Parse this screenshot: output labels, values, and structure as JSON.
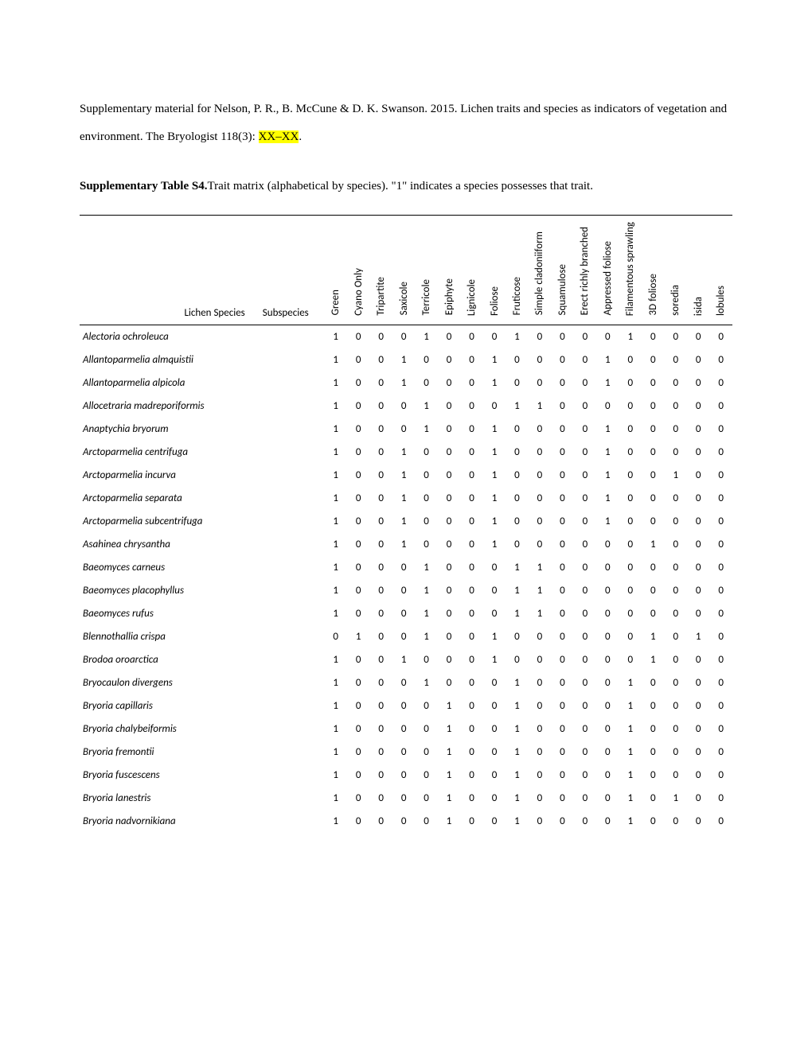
{
  "citation_pre": "Supplementary material for Nelson, P. R., B. McCune & D. K. Swanson. 2015. Lichen traits and species as indicators of vegetation and environment. The Bryologist 118(3): ",
  "citation_highlight": "XX–XX",
  "citation_post": ".",
  "caption_bold": "Supplementary Table S4.",
  "caption_rest": "Trait matrix (alphabetical by species). \"1\" indicates a species possesses that trait.",
  "table": {
    "species_header": "Lichen Species",
    "subspecies_header": "Subspecies",
    "trait_columns": [
      "Green",
      "Cyano Only",
      "Tripartite",
      "Saxicole",
      "Terricole",
      "Epiphyte",
      "Lignicole",
      "Foliose",
      "Fruticose",
      "Simple cladoniiform",
      "Squamulose",
      "Erect richly branched",
      "Appressed foliose",
      "Filamentous sprawling",
      "3D foliose",
      "soredia",
      "isida",
      "lobules"
    ],
    "rows": [
      {
        "species": "Alectoria ochroleuca",
        "sub": "",
        "v": [
          1,
          0,
          0,
          0,
          1,
          0,
          0,
          0,
          1,
          0,
          0,
          0,
          0,
          1,
          0,
          0,
          0,
          0
        ]
      },
      {
        "species": "Allantoparmelia almquistii",
        "sub": "",
        "v": [
          1,
          0,
          0,
          1,
          0,
          0,
          0,
          1,
          0,
          0,
          0,
          0,
          1,
          0,
          0,
          0,
          0,
          0
        ]
      },
      {
        "species": "Allantoparmelia alpicola",
        "sub": "",
        "v": [
          1,
          0,
          0,
          1,
          0,
          0,
          0,
          1,
          0,
          0,
          0,
          0,
          1,
          0,
          0,
          0,
          0,
          0
        ]
      },
      {
        "species": "Allocetraria madreporiformis",
        "sub": "",
        "v": [
          1,
          0,
          0,
          0,
          1,
          0,
          0,
          0,
          1,
          1,
          0,
          0,
          0,
          0,
          0,
          0,
          0,
          0
        ]
      },
      {
        "species": "Anaptychia bryorum",
        "sub": "",
        "v": [
          1,
          0,
          0,
          0,
          1,
          0,
          0,
          1,
          0,
          0,
          0,
          0,
          1,
          0,
          0,
          0,
          0,
          0
        ]
      },
      {
        "species": "Arctoparmelia centrifuga",
        "sub": "",
        "v": [
          1,
          0,
          0,
          1,
          0,
          0,
          0,
          1,
          0,
          0,
          0,
          0,
          1,
          0,
          0,
          0,
          0,
          0
        ]
      },
      {
        "species": "Arctoparmelia incurva",
        "sub": "",
        "v": [
          1,
          0,
          0,
          1,
          0,
          0,
          0,
          1,
          0,
          0,
          0,
          0,
          1,
          0,
          0,
          1,
          0,
          0
        ]
      },
      {
        "species": "Arctoparmelia separata",
        "sub": "",
        "v": [
          1,
          0,
          0,
          1,
          0,
          0,
          0,
          1,
          0,
          0,
          0,
          0,
          1,
          0,
          0,
          0,
          0,
          0
        ]
      },
      {
        "species": "Arctoparmelia subcentrifuga",
        "sub": "",
        "v": [
          1,
          0,
          0,
          1,
          0,
          0,
          0,
          1,
          0,
          0,
          0,
          0,
          1,
          0,
          0,
          0,
          0,
          0
        ]
      },
      {
        "species": "Asahinea chrysantha",
        "sub": "",
        "v": [
          1,
          0,
          0,
          1,
          0,
          0,
          0,
          1,
          0,
          0,
          0,
          0,
          0,
          0,
          1,
          0,
          0,
          0
        ]
      },
      {
        "species": "Baeomyces carneus",
        "sub": "",
        "v": [
          1,
          0,
          0,
          0,
          1,
          0,
          0,
          0,
          1,
          1,
          0,
          0,
          0,
          0,
          0,
          0,
          0,
          0
        ]
      },
      {
        "species": "Baeomyces placophyllus",
        "sub": "",
        "v": [
          1,
          0,
          0,
          0,
          1,
          0,
          0,
          0,
          1,
          1,
          0,
          0,
          0,
          0,
          0,
          0,
          0,
          0
        ]
      },
      {
        "species": "Baeomyces rufus",
        "sub": "",
        "v": [
          1,
          0,
          0,
          0,
          1,
          0,
          0,
          0,
          1,
          1,
          0,
          0,
          0,
          0,
          0,
          0,
          0,
          0
        ]
      },
      {
        "species": "Blennothallia crispa",
        "sub": "",
        "v": [
          0,
          1,
          0,
          0,
          1,
          0,
          0,
          1,
          0,
          0,
          0,
          0,
          0,
          0,
          1,
          0,
          1,
          0
        ]
      },
      {
        "species": "Brodoa oroarctica",
        "sub": "",
        "v": [
          1,
          0,
          0,
          1,
          0,
          0,
          0,
          1,
          0,
          0,
          0,
          0,
          0,
          0,
          1,
          0,
          0,
          0
        ]
      },
      {
        "species": "Bryocaulon divergens",
        "sub": "",
        "v": [
          1,
          0,
          0,
          0,
          1,
          0,
          0,
          0,
          1,
          0,
          0,
          0,
          0,
          1,
          0,
          0,
          0,
          0
        ]
      },
      {
        "species": "Bryoria capillaris",
        "sub": "",
        "v": [
          1,
          0,
          0,
          0,
          0,
          1,
          0,
          0,
          1,
          0,
          0,
          0,
          0,
          1,
          0,
          0,
          0,
          0
        ]
      },
      {
        "species": "Bryoria chalybeiformis",
        "sub": "",
        "v": [
          1,
          0,
          0,
          0,
          0,
          1,
          0,
          0,
          1,
          0,
          0,
          0,
          0,
          1,
          0,
          0,
          0,
          0
        ]
      },
      {
        "species": "Bryoria fremontii",
        "sub": "",
        "v": [
          1,
          0,
          0,
          0,
          0,
          1,
          0,
          0,
          1,
          0,
          0,
          0,
          0,
          1,
          0,
          0,
          0,
          0
        ]
      },
      {
        "species": "Bryoria fuscescens",
        "sub": "",
        "v": [
          1,
          0,
          0,
          0,
          0,
          1,
          0,
          0,
          1,
          0,
          0,
          0,
          0,
          1,
          0,
          0,
          0,
          0
        ]
      },
      {
        "species": "Bryoria lanestris",
        "sub": "",
        "v": [
          1,
          0,
          0,
          0,
          0,
          1,
          0,
          0,
          1,
          0,
          0,
          0,
          0,
          1,
          0,
          1,
          0,
          0
        ]
      },
      {
        "species": "Bryoria nadvornikiana",
        "sub": "",
        "v": [
          1,
          0,
          0,
          0,
          0,
          1,
          0,
          0,
          1,
          0,
          0,
          0,
          0,
          1,
          0,
          0,
          0,
          0
        ]
      }
    ]
  }
}
